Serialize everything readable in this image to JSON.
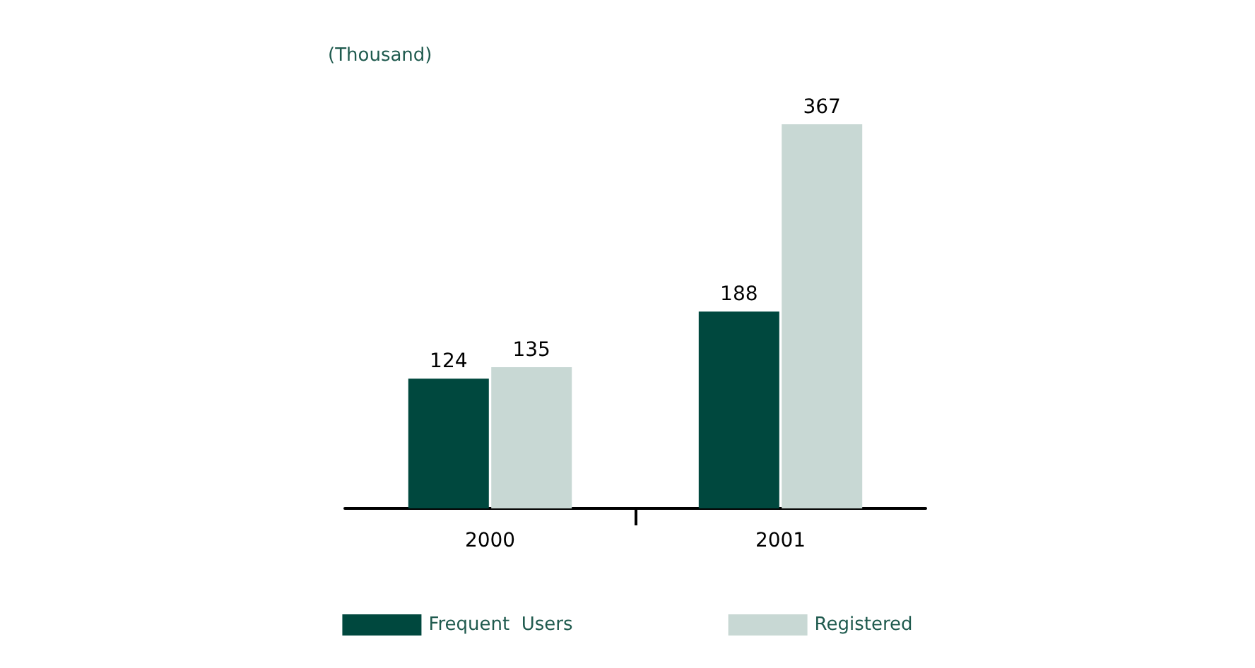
{
  "chart_data": {
    "type": "bar",
    "ylabel": "(Thousand)",
    "categories": [
      "2000",
      "2001"
    ],
    "series": [
      {
        "name": "Frequent  Users",
        "color": "#00483e",
        "values": [
          124,
          188
        ]
      },
      {
        "name": "Registered",
        "color": "#c8d8d4",
        "values": [
          135,
          367
        ]
      }
    ],
    "data_labels": true,
    "legend": "bottom",
    "grid": false
  }
}
